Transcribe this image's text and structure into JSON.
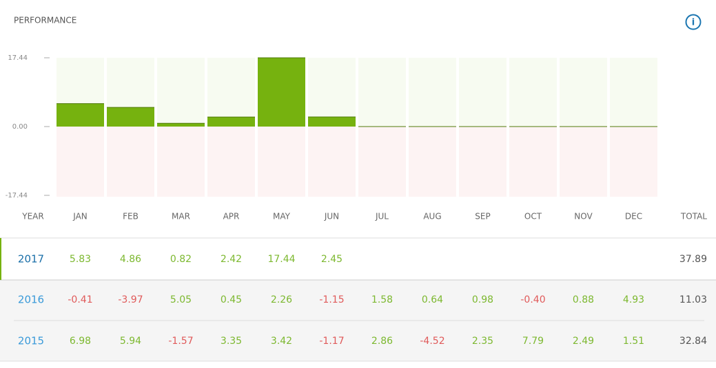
{
  "chart_data": {
    "type": "bar",
    "title": "PERFORMANCE",
    "categories": [
      "JAN",
      "FEB",
      "MAR",
      "APR",
      "MAY",
      "JUN",
      "JUL",
      "AUG",
      "SEP",
      "OCT",
      "NOV",
      "DEC"
    ],
    "values": [
      5.83,
      4.86,
      0.82,
      2.42,
      17.44,
      2.45,
      null,
      null,
      null,
      null,
      null,
      null
    ],
    "color": "#76b20f",
    "ylim": [
      -17.44,
      17.44
    ],
    "yticks": [
      17.44,
      {
        "value": 0,
        "label": "0.00"
      },
      -17.44
    ]
  },
  "table": {
    "year_header": "YEAR",
    "total_header": "TOTAL",
    "rows": [
      {
        "year": "2017",
        "total": "37.89"
      },
      {
        "year": "2016",
        "months": [
          "-0.41",
          "-3.97",
          "5.05",
          "0.45",
          "2.26",
          "-1.15",
          "1.58",
          "0.64",
          "0.98",
          "-0.40",
          "0.88",
          "4.93"
        ],
        "total": "11.03"
      },
      {
        "year": "2015",
        "months": [
          "6.98",
          "5.94",
          "-1.57",
          "3.35",
          "3.42",
          "-1.17",
          "2.86",
          "-4.52",
          "2.35",
          "7.79",
          "2.49",
          "1.51"
        ],
        "total": "32.84"
      }
    ]
  }
}
